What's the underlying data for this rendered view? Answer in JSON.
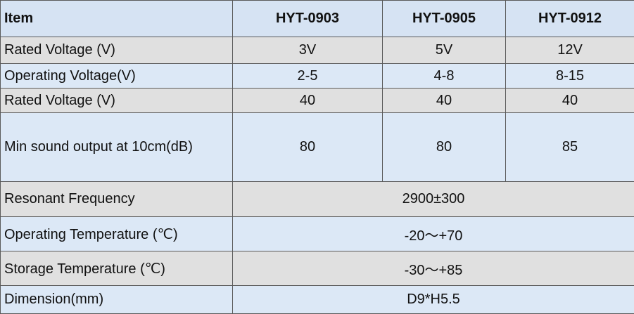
{
  "table": {
    "header": [
      "Item",
      "HYT-0903",
      "HYT-0905",
      "HYT-0912"
    ],
    "rows": [
      [
        "Rated Voltage (V)",
        "3V",
        "5V",
        "12V"
      ],
      [
        "Operating Voltage(V)",
        "2-5",
        "4-8",
        "8-15"
      ],
      [
        "Rated Voltage (V)",
        "40",
        "40",
        "40"
      ],
      [
        "Min sound output at 10cm(dB)",
        "80",
        "80",
        "85"
      ],
      [
        "Resonant Frequency",
        "2900±300"
      ],
      [
        "Operating Temperature (℃)",
        "-20～+70"
      ],
      [
        "Storage Temperature (℃)",
        "-30～+85"
      ],
      [
        "Dimension(mm)",
        "D9*H5.5"
      ]
    ]
  }
}
